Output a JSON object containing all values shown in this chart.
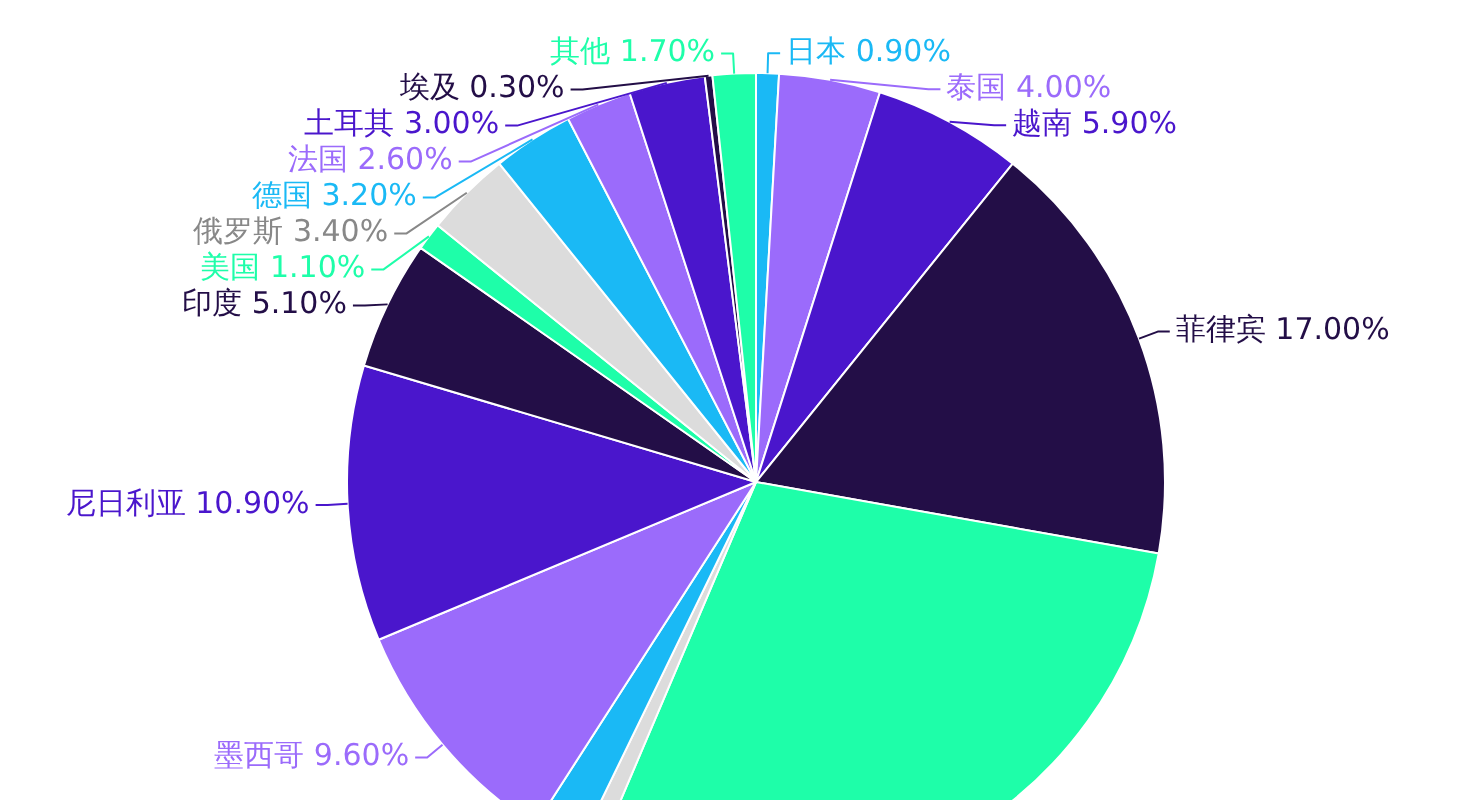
{
  "chart_data": {
    "type": "pie",
    "categories": [
      "日本",
      "泰国",
      "越南",
      "菲律宾",
      null,
      null,
      null,
      "墨西哥",
      "尼日利亚",
      "印度",
      "美国",
      "俄罗斯",
      "德国",
      "法国",
      "土耳其",
      "埃及",
      "其他"
    ],
    "values": [
      0.9,
      4,
      5.9,
      17,
      28.6,
      0.8,
      1.9,
      9.6,
      10.9,
      5.1,
      1.1,
      3.4,
      3.2,
      2.6,
      3,
      0.3,
      1.7
    ],
    "value_labels": [
      "0.90%",
      "4.00%",
      "5.90%",
      "17.00%",
      null,
      null,
      null,
      "9.60%",
      "10.90%",
      "5.10%",
      "1.10%",
      "3.40%",
      "3.20%",
      "2.60%",
      "3.00%",
      "0.30%",
      "1.70%"
    ],
    "colors": [
      "#1ab9f5",
      "#9b6bfb",
      "#4a16cc",
      "#230e47",
      "#1efea9",
      "#dcdcdc",
      "#1ab9f5",
      "#9b6bfb",
      "#4a16cc",
      "#230e47",
      "#1efea9",
      "#dcdcdc",
      "#1ab9f5",
      "#9b6bfb",
      "#4a16cc",
      "#230e47",
      "#1efea9"
    ]
  }
}
